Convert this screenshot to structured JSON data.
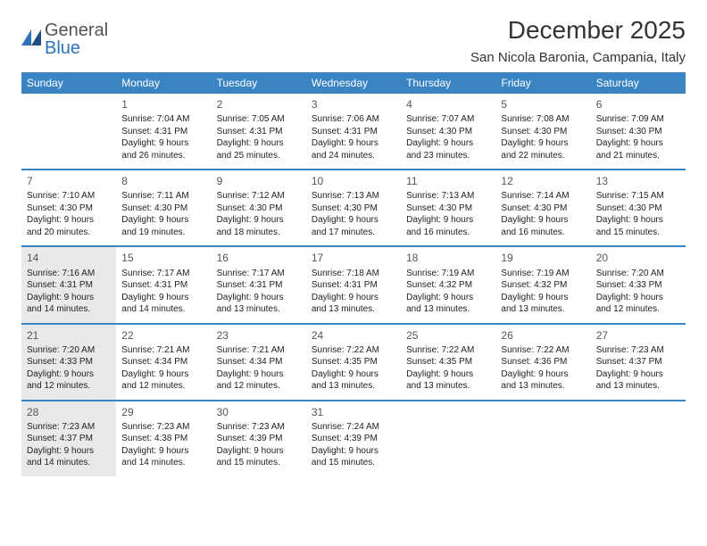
{
  "logo": {
    "general": "General",
    "blue": "Blue"
  },
  "title": "December 2025",
  "location": "San Nicola Baronia, Campania, Italy",
  "colors": {
    "header_bg": "#3b84c4",
    "header_text": "#ffffff",
    "shaded_bg": "#e9e9e9",
    "rule": "#3b84c4",
    "page_bg": "#ffffff",
    "text": "#222222",
    "daynum": "#555555"
  },
  "days_of_week": [
    "Sunday",
    "Monday",
    "Tuesday",
    "Wednesday",
    "Thursday",
    "Friday",
    "Saturday"
  ],
  "weeks": [
    [
      {
        "day": "",
        "sunrise": "",
        "sunset": "",
        "daylight": "",
        "shaded": false
      },
      {
        "day": "1",
        "sunrise": "Sunrise: 7:04 AM",
        "sunset": "Sunset: 4:31 PM",
        "daylight": "Daylight: 9 hours and 26 minutes.",
        "shaded": false
      },
      {
        "day": "2",
        "sunrise": "Sunrise: 7:05 AM",
        "sunset": "Sunset: 4:31 PM",
        "daylight": "Daylight: 9 hours and 25 minutes.",
        "shaded": false
      },
      {
        "day": "3",
        "sunrise": "Sunrise: 7:06 AM",
        "sunset": "Sunset: 4:31 PM",
        "daylight": "Daylight: 9 hours and 24 minutes.",
        "shaded": false
      },
      {
        "day": "4",
        "sunrise": "Sunrise: 7:07 AM",
        "sunset": "Sunset: 4:30 PM",
        "daylight": "Daylight: 9 hours and 23 minutes.",
        "shaded": false
      },
      {
        "day": "5",
        "sunrise": "Sunrise: 7:08 AM",
        "sunset": "Sunset: 4:30 PM",
        "daylight": "Daylight: 9 hours and 22 minutes.",
        "shaded": false
      },
      {
        "day": "6",
        "sunrise": "Sunrise: 7:09 AM",
        "sunset": "Sunset: 4:30 PM",
        "daylight": "Daylight: 9 hours and 21 minutes.",
        "shaded": false
      }
    ],
    [
      {
        "day": "7",
        "sunrise": "Sunrise: 7:10 AM",
        "sunset": "Sunset: 4:30 PM",
        "daylight": "Daylight: 9 hours and 20 minutes.",
        "shaded": false
      },
      {
        "day": "8",
        "sunrise": "Sunrise: 7:11 AM",
        "sunset": "Sunset: 4:30 PM",
        "daylight": "Daylight: 9 hours and 19 minutes.",
        "shaded": false
      },
      {
        "day": "9",
        "sunrise": "Sunrise: 7:12 AM",
        "sunset": "Sunset: 4:30 PM",
        "daylight": "Daylight: 9 hours and 18 minutes.",
        "shaded": false
      },
      {
        "day": "10",
        "sunrise": "Sunrise: 7:13 AM",
        "sunset": "Sunset: 4:30 PM",
        "daylight": "Daylight: 9 hours and 17 minutes.",
        "shaded": false
      },
      {
        "day": "11",
        "sunrise": "Sunrise: 7:13 AM",
        "sunset": "Sunset: 4:30 PM",
        "daylight": "Daylight: 9 hours and 16 minutes.",
        "shaded": false
      },
      {
        "day": "12",
        "sunrise": "Sunrise: 7:14 AM",
        "sunset": "Sunset: 4:30 PM",
        "daylight": "Daylight: 9 hours and 16 minutes.",
        "shaded": false
      },
      {
        "day": "13",
        "sunrise": "Sunrise: 7:15 AM",
        "sunset": "Sunset: 4:30 PM",
        "daylight": "Daylight: 9 hours and 15 minutes.",
        "shaded": false
      }
    ],
    [
      {
        "day": "14",
        "sunrise": "Sunrise: 7:16 AM",
        "sunset": "Sunset: 4:31 PM",
        "daylight": "Daylight: 9 hours and 14 minutes.",
        "shaded": true
      },
      {
        "day": "15",
        "sunrise": "Sunrise: 7:17 AM",
        "sunset": "Sunset: 4:31 PM",
        "daylight": "Daylight: 9 hours and 14 minutes.",
        "shaded": false
      },
      {
        "day": "16",
        "sunrise": "Sunrise: 7:17 AM",
        "sunset": "Sunset: 4:31 PM",
        "daylight": "Daylight: 9 hours and 13 minutes.",
        "shaded": false
      },
      {
        "day": "17",
        "sunrise": "Sunrise: 7:18 AM",
        "sunset": "Sunset: 4:31 PM",
        "daylight": "Daylight: 9 hours and 13 minutes.",
        "shaded": false
      },
      {
        "day": "18",
        "sunrise": "Sunrise: 7:19 AM",
        "sunset": "Sunset: 4:32 PM",
        "daylight": "Daylight: 9 hours and 13 minutes.",
        "shaded": false
      },
      {
        "day": "19",
        "sunrise": "Sunrise: 7:19 AM",
        "sunset": "Sunset: 4:32 PM",
        "daylight": "Daylight: 9 hours and 13 minutes.",
        "shaded": false
      },
      {
        "day": "20",
        "sunrise": "Sunrise: 7:20 AM",
        "sunset": "Sunset: 4:33 PM",
        "daylight": "Daylight: 9 hours and 12 minutes.",
        "shaded": false
      }
    ],
    [
      {
        "day": "21",
        "sunrise": "Sunrise: 7:20 AM",
        "sunset": "Sunset: 4:33 PM",
        "daylight": "Daylight: 9 hours and 12 minutes.",
        "shaded": true
      },
      {
        "day": "22",
        "sunrise": "Sunrise: 7:21 AM",
        "sunset": "Sunset: 4:34 PM",
        "daylight": "Daylight: 9 hours and 12 minutes.",
        "shaded": false
      },
      {
        "day": "23",
        "sunrise": "Sunrise: 7:21 AM",
        "sunset": "Sunset: 4:34 PM",
        "daylight": "Daylight: 9 hours and 12 minutes.",
        "shaded": false
      },
      {
        "day": "24",
        "sunrise": "Sunrise: 7:22 AM",
        "sunset": "Sunset: 4:35 PM",
        "daylight": "Daylight: 9 hours and 13 minutes.",
        "shaded": false
      },
      {
        "day": "25",
        "sunrise": "Sunrise: 7:22 AM",
        "sunset": "Sunset: 4:35 PM",
        "daylight": "Daylight: 9 hours and 13 minutes.",
        "shaded": false
      },
      {
        "day": "26",
        "sunrise": "Sunrise: 7:22 AM",
        "sunset": "Sunset: 4:36 PM",
        "daylight": "Daylight: 9 hours and 13 minutes.",
        "shaded": false
      },
      {
        "day": "27",
        "sunrise": "Sunrise: 7:23 AM",
        "sunset": "Sunset: 4:37 PM",
        "daylight": "Daylight: 9 hours and 13 minutes.",
        "shaded": false
      }
    ],
    [
      {
        "day": "28",
        "sunrise": "Sunrise: 7:23 AM",
        "sunset": "Sunset: 4:37 PM",
        "daylight": "Daylight: 9 hours and 14 minutes.",
        "shaded": true
      },
      {
        "day": "29",
        "sunrise": "Sunrise: 7:23 AM",
        "sunset": "Sunset: 4:38 PM",
        "daylight": "Daylight: 9 hours and 14 minutes.",
        "shaded": false
      },
      {
        "day": "30",
        "sunrise": "Sunrise: 7:23 AM",
        "sunset": "Sunset: 4:39 PM",
        "daylight": "Daylight: 9 hours and 15 minutes.",
        "shaded": false
      },
      {
        "day": "31",
        "sunrise": "Sunrise: 7:24 AM",
        "sunset": "Sunset: 4:39 PM",
        "daylight": "Daylight: 9 hours and 15 minutes.",
        "shaded": false
      },
      {
        "day": "",
        "sunrise": "",
        "sunset": "",
        "daylight": "",
        "shaded": false
      },
      {
        "day": "",
        "sunrise": "",
        "sunset": "",
        "daylight": "",
        "shaded": false
      },
      {
        "day": "",
        "sunrise": "",
        "sunset": "",
        "daylight": "",
        "shaded": false
      }
    ]
  ]
}
